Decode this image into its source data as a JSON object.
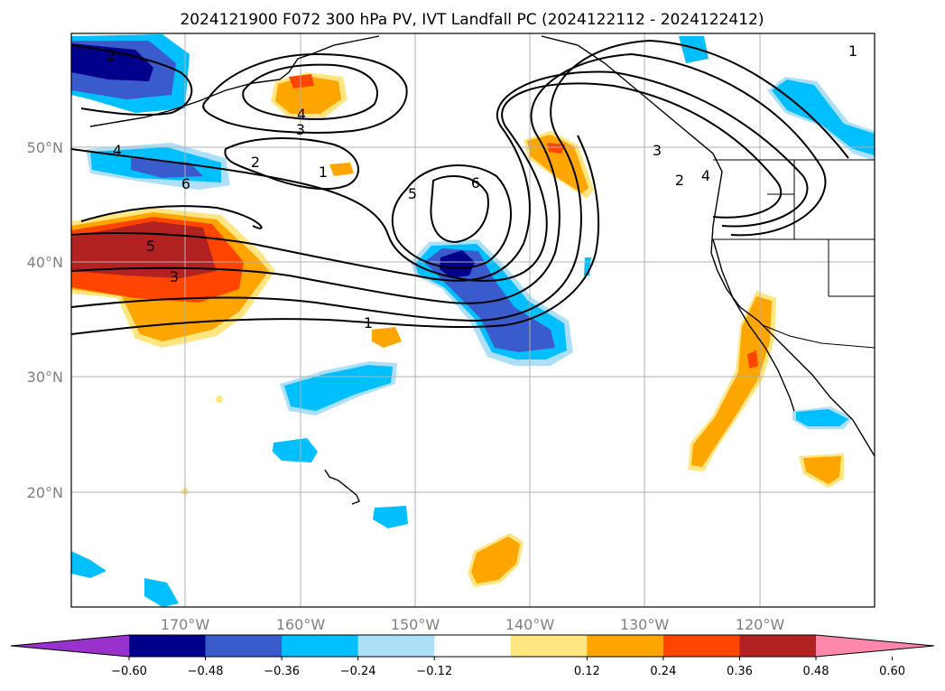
{
  "title": "2024121900 F072 300 hPa PV, IVT Landfall PC (2024122112 - 2024122412)",
  "lat_labels": [
    "50°N",
    "40°N",
    "30°N",
    "20°N"
  ],
  "lon_labels": [
    "170°W",
    "160°W",
    "150°W",
    "140°W",
    "130°W",
    "120°W"
  ],
  "colorbar": {
    "ticks": [
      "−0.60",
      "−0.48",
      "−0.36",
      "−0.24",
      "−0.12",
      "0.12",
      "0.24",
      "0.36",
      "0.48",
      "0.60"
    ],
    "colors": [
      "#9932CC",
      "#00008B",
      "#3A5BCC",
      "#00BFFF",
      "#ADE0F8",
      "#FFFFFF",
      "#FFE680",
      "#FFA500",
      "#FF4500",
      "#B22222",
      "#FF88AA"
    ]
  },
  "contour_labels": [
    "2",
    "4",
    "6",
    "5",
    "3",
    "1",
    "4",
    "3",
    "2",
    "1",
    "5",
    "6",
    "3",
    "2",
    "4",
    "1"
  ],
  "palette": {
    "pos1": "#FFE680",
    "pos2": "#FFA500",
    "pos3": "#FF4500",
    "pos4": "#B22222",
    "neg1": "#ADE0F8",
    "neg2": "#00BFFF",
    "neg3": "#3A5BCC",
    "neg4": "#00008B"
  }
}
